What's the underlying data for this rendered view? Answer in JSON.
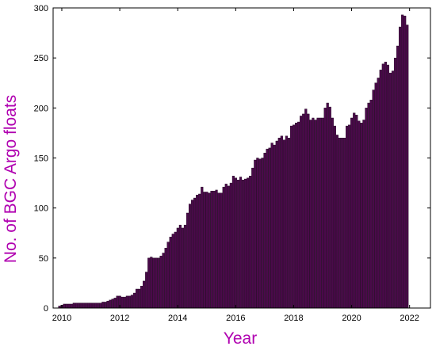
{
  "chart_data": {
    "type": "bar",
    "xlabel": "Year",
    "ylabel": "No. of BGC Argo floats",
    "xlim": [
      2009.7,
      2022.72
    ],
    "ylim": [
      0,
      300
    ],
    "x_ticks": [
      2010,
      2012,
      2014,
      2016,
      2018,
      2020,
      2022
    ],
    "x_tick_labels": [
      "2010",
      "2012",
      "2014",
      "2016",
      "2018",
      "2020",
      "2022"
    ],
    "y_ticks": [
      0,
      50,
      100,
      150,
      200,
      250,
      300
    ],
    "y_tick_labels": [
      "0",
      "50",
      "100",
      "150",
      "200",
      "250",
      "300"
    ],
    "grid": false,
    "bar_color": "#4a0a4a",
    "title_color": "#b000b0",
    "x_start": 2009.92,
    "x_step": 0.0833333,
    "values": [
      2,
      3,
      4,
      4,
      4,
      4,
      5,
      5,
      5,
      5,
      5,
      5,
      5,
      5,
      5,
      5,
      5,
      5,
      6,
      6,
      7,
      8,
      9,
      10,
      12,
      12,
      11,
      11,
      12,
      12,
      13,
      15,
      19,
      19,
      22,
      27,
      36,
      50,
      51,
      50,
      50,
      50,
      52,
      55,
      60,
      66,
      71,
      74,
      76,
      80,
      83,
      80,
      83,
      95,
      104,
      108,
      110,
      113,
      114,
      121,
      116,
      116,
      115,
      117,
      117,
      118,
      115,
      115,
      121,
      124,
      122,
      125,
      132,
      130,
      128,
      131,
      128,
      129,
      130,
      132,
      140,
      148,
      150,
      149,
      150,
      155,
      159,
      160,
      165,
      163,
      167,
      170,
      172,
      168,
      172,
      170,
      182,
      183,
      185,
      186,
      192,
      194,
      199,
      194,
      188,
      190,
      188,
      190,
      190,
      190,
      200,
      205,
      201,
      190,
      182,
      173,
      170,
      170,
      170,
      182,
      183,
      190,
      195,
      193,
      187,
      185,
      188,
      200,
      205,
      208,
      218,
      225,
      230,
      238,
      244,
      246,
      243,
      235,
      237,
      250,
      262,
      281,
      293,
      292,
      283
    ]
  }
}
